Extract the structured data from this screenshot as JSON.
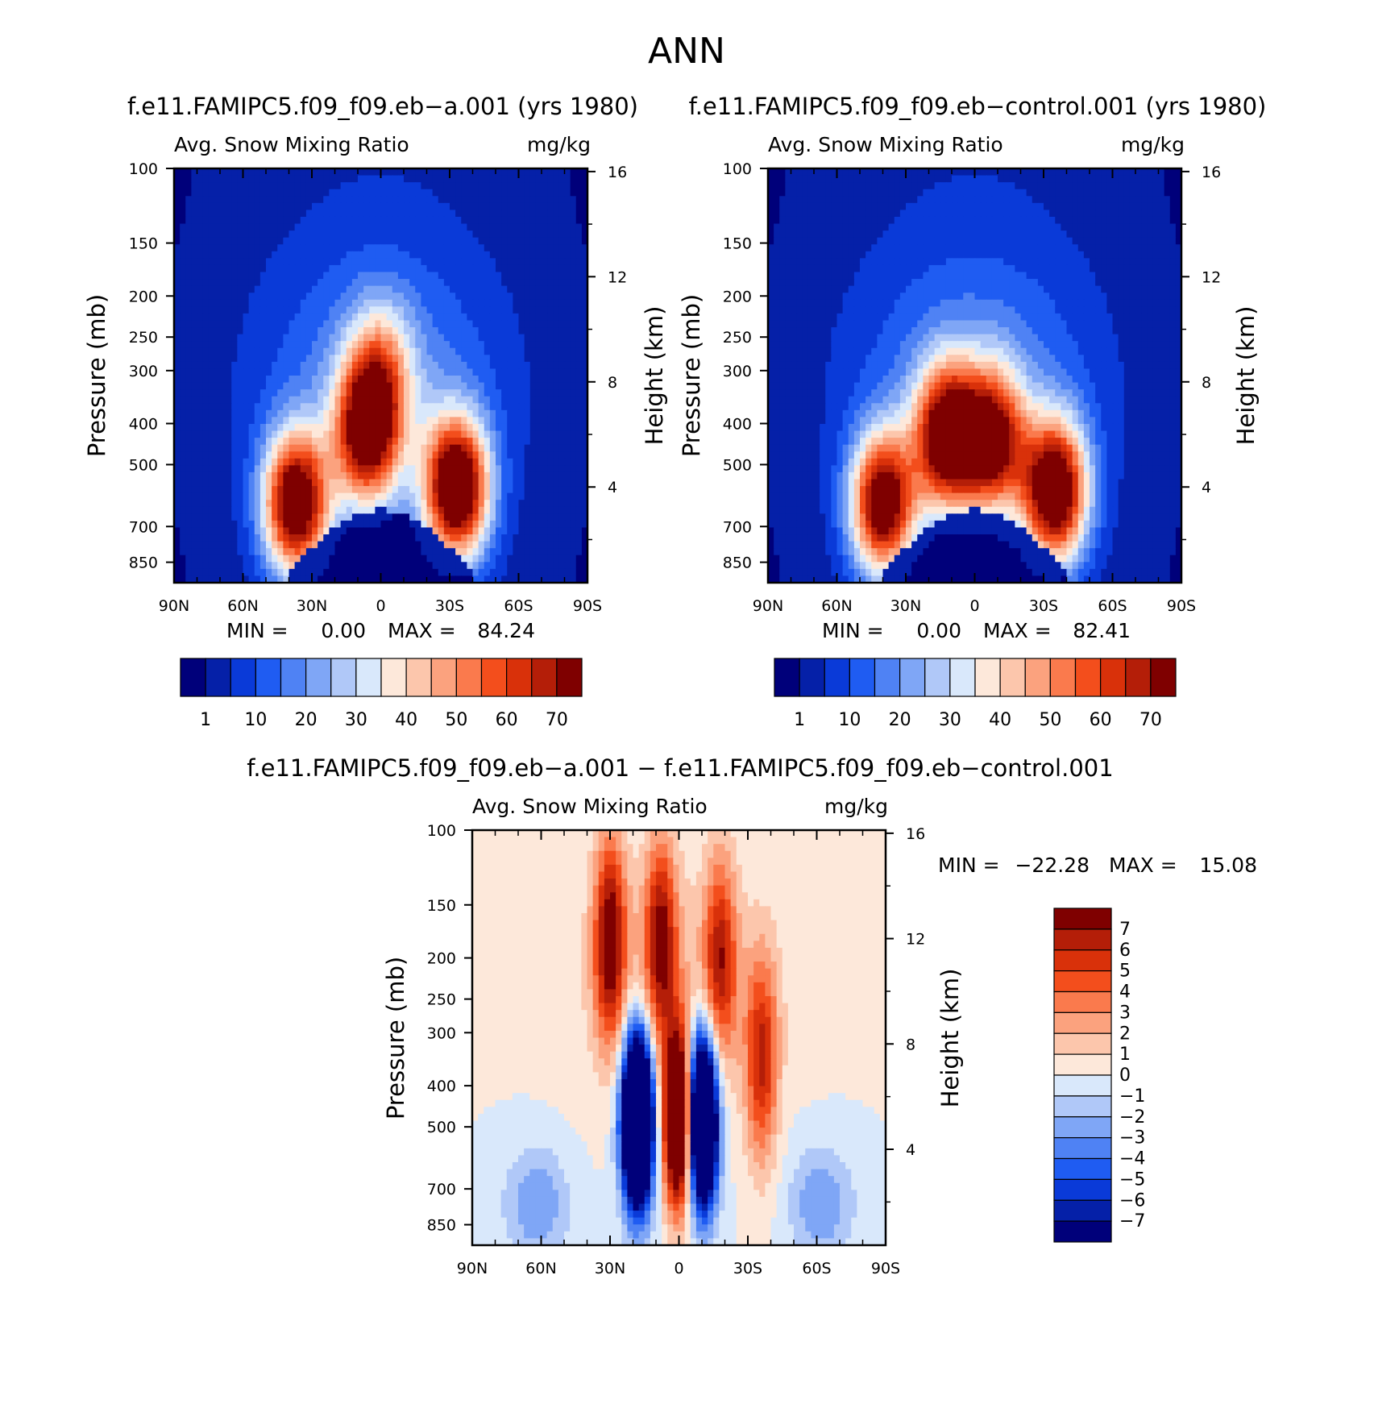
{
  "figure_title": "ANN",
  "colors": {
    "main_palette": [
      "#00007a",
      "#0520a8",
      "#0a3ad8",
      "#1f5cf2",
      "#4f82f4",
      "#7fa6f6",
      "#b0c8f8",
      "#d9e8fb",
      "#fde8da",
      "#fcc6ac",
      "#fba27e",
      "#fa7a4d",
      "#f34e1c",
      "#d9310a",
      "#b41e08",
      "#7f0000"
    ],
    "diff_palette": [
      "#00007a",
      "#0520a8",
      "#0a3ad8",
      "#1f5cf2",
      "#4f82f4",
      "#7fa6f6",
      "#b0c8f8",
      "#d9e8fb",
      "#fde8da",
      "#fcc6ac",
      "#fba27e",
      "#fa7a4d",
      "#f34e1c",
      "#d9310a",
      "#b41e08",
      "#7f0000"
    ]
  },
  "chart_data": [
    {
      "type": "heatmap",
      "panel": "model-a",
      "title": "f.e11.FAMIPC5.f09_f09.eb−a.001 (yrs 1980)",
      "subtitle_left": "Avg. Snow Mixing Ratio",
      "subtitle_right": "mg/kg",
      "ylabel": "Pressure (mb)",
      "ylabel_right": "Height (km)",
      "x_ticks": [
        "90N",
        "60N",
        "30N",
        "0",
        "30S",
        "60S",
        "90S"
      ],
      "x_lat_range": [
        90,
        -90
      ],
      "y_pressure_ticks": [
        "100",
        "150",
        "200",
        "250",
        "300",
        "400",
        "500",
        "700",
        "850"
      ],
      "y_pressure_range": [
        100,
        950
      ],
      "y_height_ticks": [
        "16",
        "12",
        "8",
        "4"
      ],
      "min_label": "MIN =",
      "min_value": "0.00",
      "max_label": "MAX =",
      "max_value": "84.24",
      "colorbar_labels": [
        "1",
        "10",
        "20",
        "30",
        "40",
        "50",
        "60",
        "70"
      ],
      "colorbar_levels": [
        1,
        5,
        10,
        15,
        20,
        25,
        30,
        35,
        40,
        45,
        50,
        55,
        60,
        65,
        70
      ],
      "field_peak": 84.24,
      "field_features": [
        {
          "lat": 37,
          "p": 620,
          "amp": 80
        },
        {
          "lat": 6,
          "p": 420,
          "amp": 66
        },
        {
          "lat": -33,
          "p": 570,
          "amp": 84
        },
        {
          "lat": 0,
          "p": 300,
          "amp": 30
        }
      ]
    },
    {
      "type": "heatmap",
      "panel": "control",
      "title": "f.e11.FAMIPC5.f09_f09.eb−control.001 (yrs 1980)",
      "subtitle_left": "Avg. Snow Mixing Ratio",
      "subtitle_right": "mg/kg",
      "ylabel": "Pressure (mb)",
      "ylabel_right": "Height (km)",
      "x_ticks": [
        "90N",
        "60N",
        "30N",
        "0",
        "30S",
        "60S",
        "90S"
      ],
      "x_lat_range": [
        90,
        -90
      ],
      "y_pressure_ticks": [
        "100",
        "150",
        "200",
        "250",
        "300",
        "400",
        "500",
        "700",
        "850"
      ],
      "y_pressure_range": [
        100,
        950
      ],
      "y_height_ticks": [
        "16",
        "12",
        "8",
        "4"
      ],
      "min_label": "MIN =",
      "min_value": "0.00",
      "max_label": "MAX =",
      "max_value": "82.41",
      "colorbar_labels": [
        "1",
        "10",
        "20",
        "30",
        "40",
        "50",
        "60",
        "70"
      ],
      "colorbar_levels": [
        1,
        5,
        10,
        15,
        20,
        25,
        30,
        35,
        40,
        45,
        50,
        55,
        60,
        65,
        70
      ],
      "field_peak": 82.41,
      "field_features": [
        {
          "lat": 40,
          "p": 620,
          "amp": 76
        },
        {
          "lat": 12,
          "p": 430,
          "amp": 72
        },
        {
          "lat": -8,
          "p": 440,
          "amp": 62
        },
        {
          "lat": -35,
          "p": 580,
          "amp": 82
        }
      ]
    },
    {
      "type": "heatmap",
      "panel": "difference",
      "title": "f.e11.FAMIPC5.f09_f09.eb−a.001 − f.e11.FAMIPC5.f09_f09.eb−control.001",
      "subtitle_left": "Avg. Snow Mixing Ratio",
      "subtitle_right": "mg/kg",
      "ylabel": "Pressure (mb)",
      "ylabel_right": "Height (km)",
      "x_ticks": [
        "90N",
        "60N",
        "30N",
        "0",
        "30S",
        "60S",
        "90S"
      ],
      "x_lat_range": [
        90,
        -90
      ],
      "y_pressure_ticks": [
        "100",
        "150",
        "200",
        "250",
        "300",
        "400",
        "500",
        "700",
        "850"
      ],
      "y_pressure_range": [
        100,
        950
      ],
      "y_height_ticks": [
        "16",
        "12",
        "8",
        "4"
      ],
      "min_label": "MIN =",
      "min_value": "−22.28",
      "max_label": "MAX =",
      "max_value": "15.08",
      "colorbar_labels": [
        "7",
        "6",
        "5",
        "4",
        "3",
        "2",
        "1",
        "0",
        "−1",
        "−2",
        "−3",
        "−4",
        "−5",
        "−6",
        "−7"
      ],
      "colorbar_levels": [
        -7,
        -6,
        -5,
        -4,
        -3,
        -2,
        -1,
        0,
        1,
        2,
        3,
        4,
        5,
        6,
        7
      ],
      "field_features": [
        {
          "lat": 18,
          "p": 480,
          "amp": -22.28
        },
        {
          "lat": -10,
          "p": 480,
          "amp": -20
        },
        {
          "lat": 0,
          "p": 480,
          "amp": 15.08
        },
        {
          "lat": 30,
          "p": 180,
          "amp": 8
        },
        {
          "lat": 8,
          "p": 180,
          "amp": 7
        },
        {
          "lat": -18,
          "p": 200,
          "amp": 6
        },
        {
          "lat": -36,
          "p": 350,
          "amp": 6
        }
      ]
    }
  ]
}
